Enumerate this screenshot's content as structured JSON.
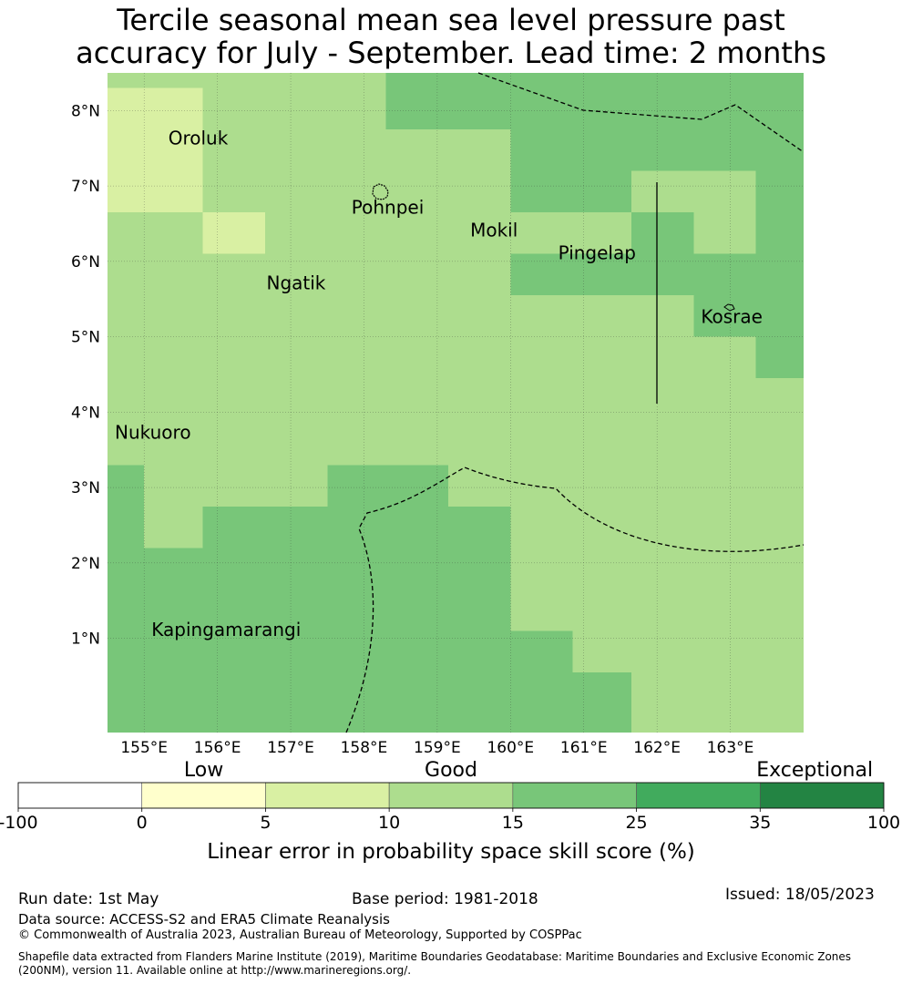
{
  "title": {
    "line1": "Tercile seasonal mean sea level pressure past",
    "line2": "accuracy for July - September. Lead time: 2 months"
  },
  "map": {
    "lon_range": [
      154.5,
      164.0
    ],
    "lat_range": [
      -0.25,
      8.5
    ],
    "lon_ticks": [
      155,
      156,
      157,
      158,
      159,
      160,
      161,
      162,
      163
    ],
    "lat_ticks": [
      1,
      2,
      3,
      4,
      5,
      6,
      7,
      8
    ],
    "lon_labels": [
      "155°E",
      "156°E",
      "157°E",
      "158°E",
      "159°E",
      "160°E",
      "161°E",
      "162°E",
      "163°E"
    ],
    "lat_labels": [
      "1°N",
      "2°N",
      "3°N",
      "4°N",
      "5°N",
      "6°N",
      "7°N",
      "8°N"
    ],
    "grid": true,
    "colors": {
      "cat_0_5": "#ffffcc",
      "cat_5_10": "#d9f0a3",
      "cat_10_15": "#addd8e",
      "cat_15_25": "#78c679",
      "cat_25_35": "#41ab5d",
      "cat_35_100": "#238443"
    },
    "skill_cells": [
      {
        "lon": [
          154.5,
          155.8
        ],
        "lat": [
          6.65,
          8.3
        ],
        "category": "5-10"
      },
      {
        "lon": [
          155.8,
          156.65
        ],
        "lat": [
          6.1,
          6.65
        ],
        "category": "5-10"
      },
      {
        "lon": [
          158.3,
          160.0
        ],
        "lat": [
          7.75,
          8.5
        ],
        "category": "15-25"
      },
      {
        "lon": [
          160.0,
          164.0
        ],
        "lat": [
          7.2,
          8.5
        ],
        "category": "15-25"
      },
      {
        "lon": [
          160.0,
          161.65
        ],
        "lat": [
          6.65,
          7.2
        ],
        "category": "15-25"
      },
      {
        "lon": [
          163.35,
          164.0
        ],
        "lat": [
          6.1,
          7.2
        ],
        "category": "15-25"
      },
      {
        "lon": [
          161.65,
          162.5
        ],
        "lat": [
          6.1,
          6.65
        ],
        "category": "15-25"
      },
      {
        "lon": [
          160.0,
          164.0
        ],
        "lat": [
          5.55,
          6.1
        ],
        "category": "15-25"
      },
      {
        "lon": [
          162.5,
          164.0
        ],
        "lat": [
          5.0,
          5.55
        ],
        "category": "15-25"
      },
      {
        "lon": [
          163.35,
          164.0
        ],
        "lat": [
          4.45,
          5.0
        ],
        "category": "15-25"
      },
      {
        "lon": [
          154.5,
          155.0
        ],
        "lat": [
          -0.25,
          3.3
        ],
        "category": "15-25"
      },
      {
        "lon": [
          155.0,
          157.5
        ],
        "lat": [
          -0.25,
          2.2
        ],
        "category": "15-25"
      },
      {
        "lon": [
          155.8,
          157.5
        ],
        "lat": [
          2.2,
          2.75
        ],
        "category": "15-25"
      },
      {
        "lon": [
          157.5,
          159.15
        ],
        "lat": [
          2.75,
          3.3
        ],
        "category": "15-25"
      },
      {
        "lon": [
          157.5,
          160.0
        ],
        "lat": [
          -0.25,
          2.75
        ],
        "category": "15-25"
      },
      {
        "lon": [
          160.0,
          160.85
        ],
        "lat": [
          -0.25,
          1.1
        ],
        "category": "15-25"
      },
      {
        "lon": [
          160.85,
          161.65
        ],
        "lat": [
          -0.25,
          0.55
        ],
        "category": "15-25"
      }
    ],
    "places": [
      {
        "name": "Oroluk",
        "lon": 155.33,
        "lat": 7.55
      },
      {
        "name": "Pohnpei",
        "lon": 157.83,
        "lat": 6.63
      },
      {
        "name": "Mokil",
        "lon": 159.45,
        "lat": 6.33
      },
      {
        "name": "Pingelap",
        "lon": 160.65,
        "lat": 6.03
      },
      {
        "name": "Ngatik",
        "lon": 156.67,
        "lat": 5.63
      },
      {
        "name": "Kosrae",
        "lon": 162.6,
        "lat": 5.18
      },
      {
        "name": "Nukuoro",
        "lon": 154.6,
        "lat": 3.65
      },
      {
        "name": "Kapingamarangi",
        "lon": 155.1,
        "lat": 1.03
      }
    ]
  },
  "legend": {
    "category_labels": [
      "Low",
      "Good",
      "Exceptional"
    ],
    "ticks": [
      "-100",
      "0",
      "5",
      "10",
      "15",
      "25",
      "35",
      "100"
    ],
    "colors": [
      "#ffffff",
      "#ffffcc",
      "#d9f0a3",
      "#addd8e",
      "#78c679",
      "#41ab5d",
      "#238443"
    ],
    "label": "Linear error in probability space skill score (%)"
  },
  "footer": {
    "run_date": "Run date: 1st May",
    "base_period": "Base period: 1981-2018",
    "issued": "Issued: 18/05/2023",
    "data_source": "Data source: ACCESS-S2 and ERA5 Climate Reanalysis",
    "copyright": "© Commonwealth of Australia 2023, Australian Bureau of Meteorology, Supported by COSPPac",
    "shapefile": "Shapefile data extracted from Flanders Marine Institute (2019), Maritime Boundaries Geodatabase: Maritime Boundaries and Exclusive Economic Zones (200NM), version 11. Available online at http://www.marineregions.org/."
  }
}
